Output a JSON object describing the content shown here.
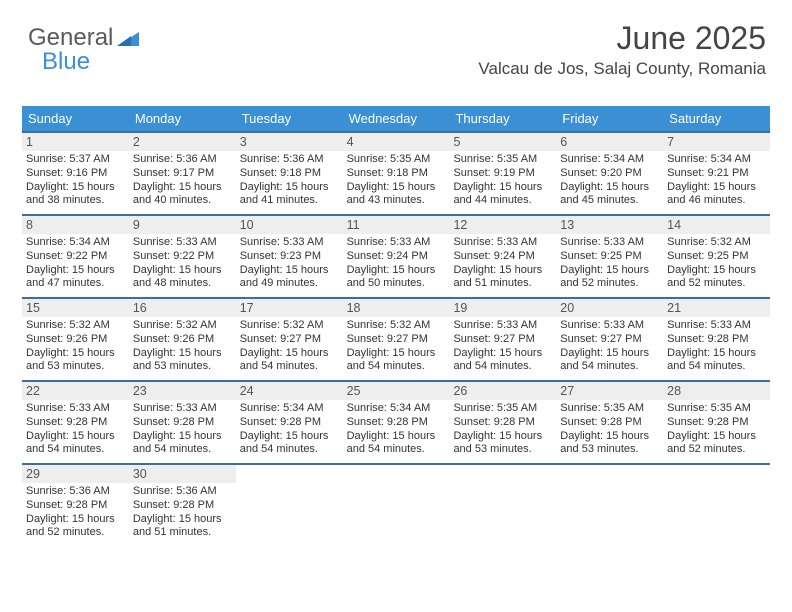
{
  "branding": {
    "word1": "General",
    "word2": "Blue",
    "logo_color": "#3b8fd4",
    "text_color": "#5a5a5a"
  },
  "header": {
    "title": "June 2025",
    "location": "Valcau de Jos, Salaj County, Romania"
  },
  "colors": {
    "head_bg": "#3b8fd4",
    "head_text": "#ffffff",
    "row_border": "#3b6fa0",
    "daynum_bg": "#eeeeee",
    "body_text": "#333333",
    "background": "#ffffff"
  },
  "typography": {
    "title_fontsize": 32,
    "location_fontsize": 17,
    "dayhead_fontsize": 13,
    "daynum_fontsize": 12.5,
    "cell_fontsize": 11
  },
  "day_headers": [
    "Sunday",
    "Monday",
    "Tuesday",
    "Wednesday",
    "Thursday",
    "Friday",
    "Saturday"
  ],
  "weeks": [
    [
      {
        "n": "1",
        "sr": "Sunrise: 5:37 AM",
        "ss": "Sunset: 9:16 PM",
        "dl": "Daylight: 15 hours and 38 minutes."
      },
      {
        "n": "2",
        "sr": "Sunrise: 5:36 AM",
        "ss": "Sunset: 9:17 PM",
        "dl": "Daylight: 15 hours and 40 minutes."
      },
      {
        "n": "3",
        "sr": "Sunrise: 5:36 AM",
        "ss": "Sunset: 9:18 PM",
        "dl": "Daylight: 15 hours and 41 minutes."
      },
      {
        "n": "4",
        "sr": "Sunrise: 5:35 AM",
        "ss": "Sunset: 9:18 PM",
        "dl": "Daylight: 15 hours and 43 minutes."
      },
      {
        "n": "5",
        "sr": "Sunrise: 5:35 AM",
        "ss": "Sunset: 9:19 PM",
        "dl": "Daylight: 15 hours and 44 minutes."
      },
      {
        "n": "6",
        "sr": "Sunrise: 5:34 AM",
        "ss": "Sunset: 9:20 PM",
        "dl": "Daylight: 15 hours and 45 minutes."
      },
      {
        "n": "7",
        "sr": "Sunrise: 5:34 AM",
        "ss": "Sunset: 9:21 PM",
        "dl": "Daylight: 15 hours and 46 minutes."
      }
    ],
    [
      {
        "n": "8",
        "sr": "Sunrise: 5:34 AM",
        "ss": "Sunset: 9:22 PM",
        "dl": "Daylight: 15 hours and 47 minutes."
      },
      {
        "n": "9",
        "sr": "Sunrise: 5:33 AM",
        "ss": "Sunset: 9:22 PM",
        "dl": "Daylight: 15 hours and 48 minutes."
      },
      {
        "n": "10",
        "sr": "Sunrise: 5:33 AM",
        "ss": "Sunset: 9:23 PM",
        "dl": "Daylight: 15 hours and 49 minutes."
      },
      {
        "n": "11",
        "sr": "Sunrise: 5:33 AM",
        "ss": "Sunset: 9:24 PM",
        "dl": "Daylight: 15 hours and 50 minutes."
      },
      {
        "n": "12",
        "sr": "Sunrise: 5:33 AM",
        "ss": "Sunset: 9:24 PM",
        "dl": "Daylight: 15 hours and 51 minutes."
      },
      {
        "n": "13",
        "sr": "Sunrise: 5:33 AM",
        "ss": "Sunset: 9:25 PM",
        "dl": "Daylight: 15 hours and 52 minutes."
      },
      {
        "n": "14",
        "sr": "Sunrise: 5:32 AM",
        "ss": "Sunset: 9:25 PM",
        "dl": "Daylight: 15 hours and 52 minutes."
      }
    ],
    [
      {
        "n": "15",
        "sr": "Sunrise: 5:32 AM",
        "ss": "Sunset: 9:26 PM",
        "dl": "Daylight: 15 hours and 53 minutes."
      },
      {
        "n": "16",
        "sr": "Sunrise: 5:32 AM",
        "ss": "Sunset: 9:26 PM",
        "dl": "Daylight: 15 hours and 53 minutes."
      },
      {
        "n": "17",
        "sr": "Sunrise: 5:32 AM",
        "ss": "Sunset: 9:27 PM",
        "dl": "Daylight: 15 hours and 54 minutes."
      },
      {
        "n": "18",
        "sr": "Sunrise: 5:32 AM",
        "ss": "Sunset: 9:27 PM",
        "dl": "Daylight: 15 hours and 54 minutes."
      },
      {
        "n": "19",
        "sr": "Sunrise: 5:33 AM",
        "ss": "Sunset: 9:27 PM",
        "dl": "Daylight: 15 hours and 54 minutes."
      },
      {
        "n": "20",
        "sr": "Sunrise: 5:33 AM",
        "ss": "Sunset: 9:27 PM",
        "dl": "Daylight: 15 hours and 54 minutes."
      },
      {
        "n": "21",
        "sr": "Sunrise: 5:33 AM",
        "ss": "Sunset: 9:28 PM",
        "dl": "Daylight: 15 hours and 54 minutes."
      }
    ],
    [
      {
        "n": "22",
        "sr": "Sunrise: 5:33 AM",
        "ss": "Sunset: 9:28 PM",
        "dl": "Daylight: 15 hours and 54 minutes."
      },
      {
        "n": "23",
        "sr": "Sunrise: 5:33 AM",
        "ss": "Sunset: 9:28 PM",
        "dl": "Daylight: 15 hours and 54 minutes."
      },
      {
        "n": "24",
        "sr": "Sunrise: 5:34 AM",
        "ss": "Sunset: 9:28 PM",
        "dl": "Daylight: 15 hours and 54 minutes."
      },
      {
        "n": "25",
        "sr": "Sunrise: 5:34 AM",
        "ss": "Sunset: 9:28 PM",
        "dl": "Daylight: 15 hours and 54 minutes."
      },
      {
        "n": "26",
        "sr": "Sunrise: 5:35 AM",
        "ss": "Sunset: 9:28 PM",
        "dl": "Daylight: 15 hours and 53 minutes."
      },
      {
        "n": "27",
        "sr": "Sunrise: 5:35 AM",
        "ss": "Sunset: 9:28 PM",
        "dl": "Daylight: 15 hours and 53 minutes."
      },
      {
        "n": "28",
        "sr": "Sunrise: 5:35 AM",
        "ss": "Sunset: 9:28 PM",
        "dl": "Daylight: 15 hours and 52 minutes."
      }
    ],
    [
      {
        "n": "29",
        "sr": "Sunrise: 5:36 AM",
        "ss": "Sunset: 9:28 PM",
        "dl": "Daylight: 15 hours and 52 minutes."
      },
      {
        "n": "30",
        "sr": "Sunrise: 5:36 AM",
        "ss": "Sunset: 9:28 PM",
        "dl": "Daylight: 15 hours and 51 minutes."
      },
      {
        "empty": true
      },
      {
        "empty": true
      },
      {
        "empty": true
      },
      {
        "empty": true
      },
      {
        "empty": true
      }
    ]
  ]
}
